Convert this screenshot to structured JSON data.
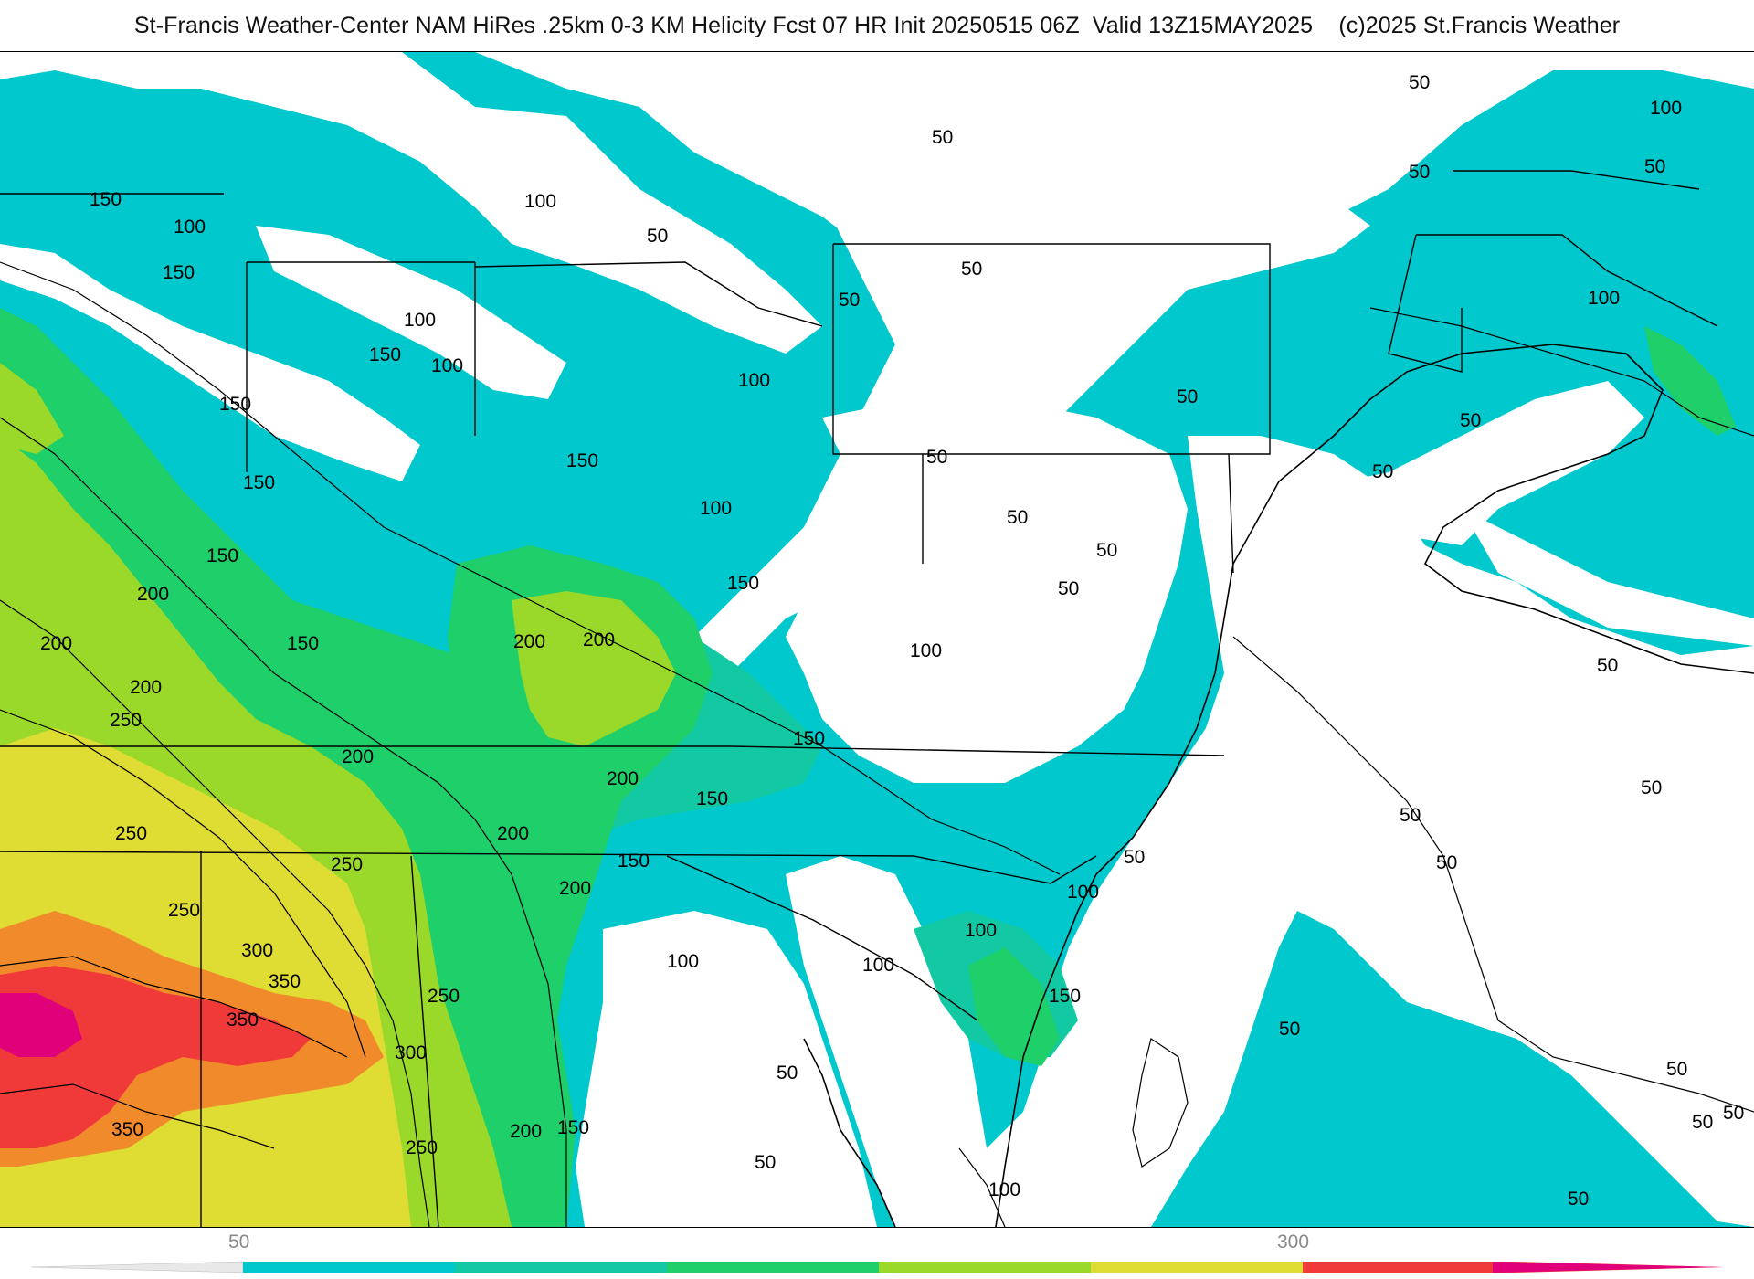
{
  "title": "St-Francis Weather-Center NAM HiRes .25km 0-3 KM Helicity Fcst 07 HR Init 20250515 06Z  Valid 13Z15MAY2025    (c)2025 St.Francis Weather",
  "colors": {
    "c50": "#00c8cc",
    "c100": "#10c8a8",
    "c150": "#1fcf6a",
    "c200": "#9ad92a",
    "c250": "#dfdc33",
    "c300": "#f08a2a",
    "c350": "#f03a3a",
    "c400": "#e0007a",
    "land_border": "#000000",
    "county": "#bfbfbf"
  },
  "contour_labels": [
    "50",
    "100",
    "150",
    "200",
    "250",
    "300",
    "350"
  ],
  "legend": {
    "ticks": [
      "50",
      "300"
    ],
    "colors": [
      "#f2f2f2",
      "#00c8cc",
      "#12c9a4",
      "#1fcf6a",
      "#9ad92a",
      "#dfdc33",
      "#f08a2a",
      "#f03a3a",
      "#e0007a"
    ]
  }
}
